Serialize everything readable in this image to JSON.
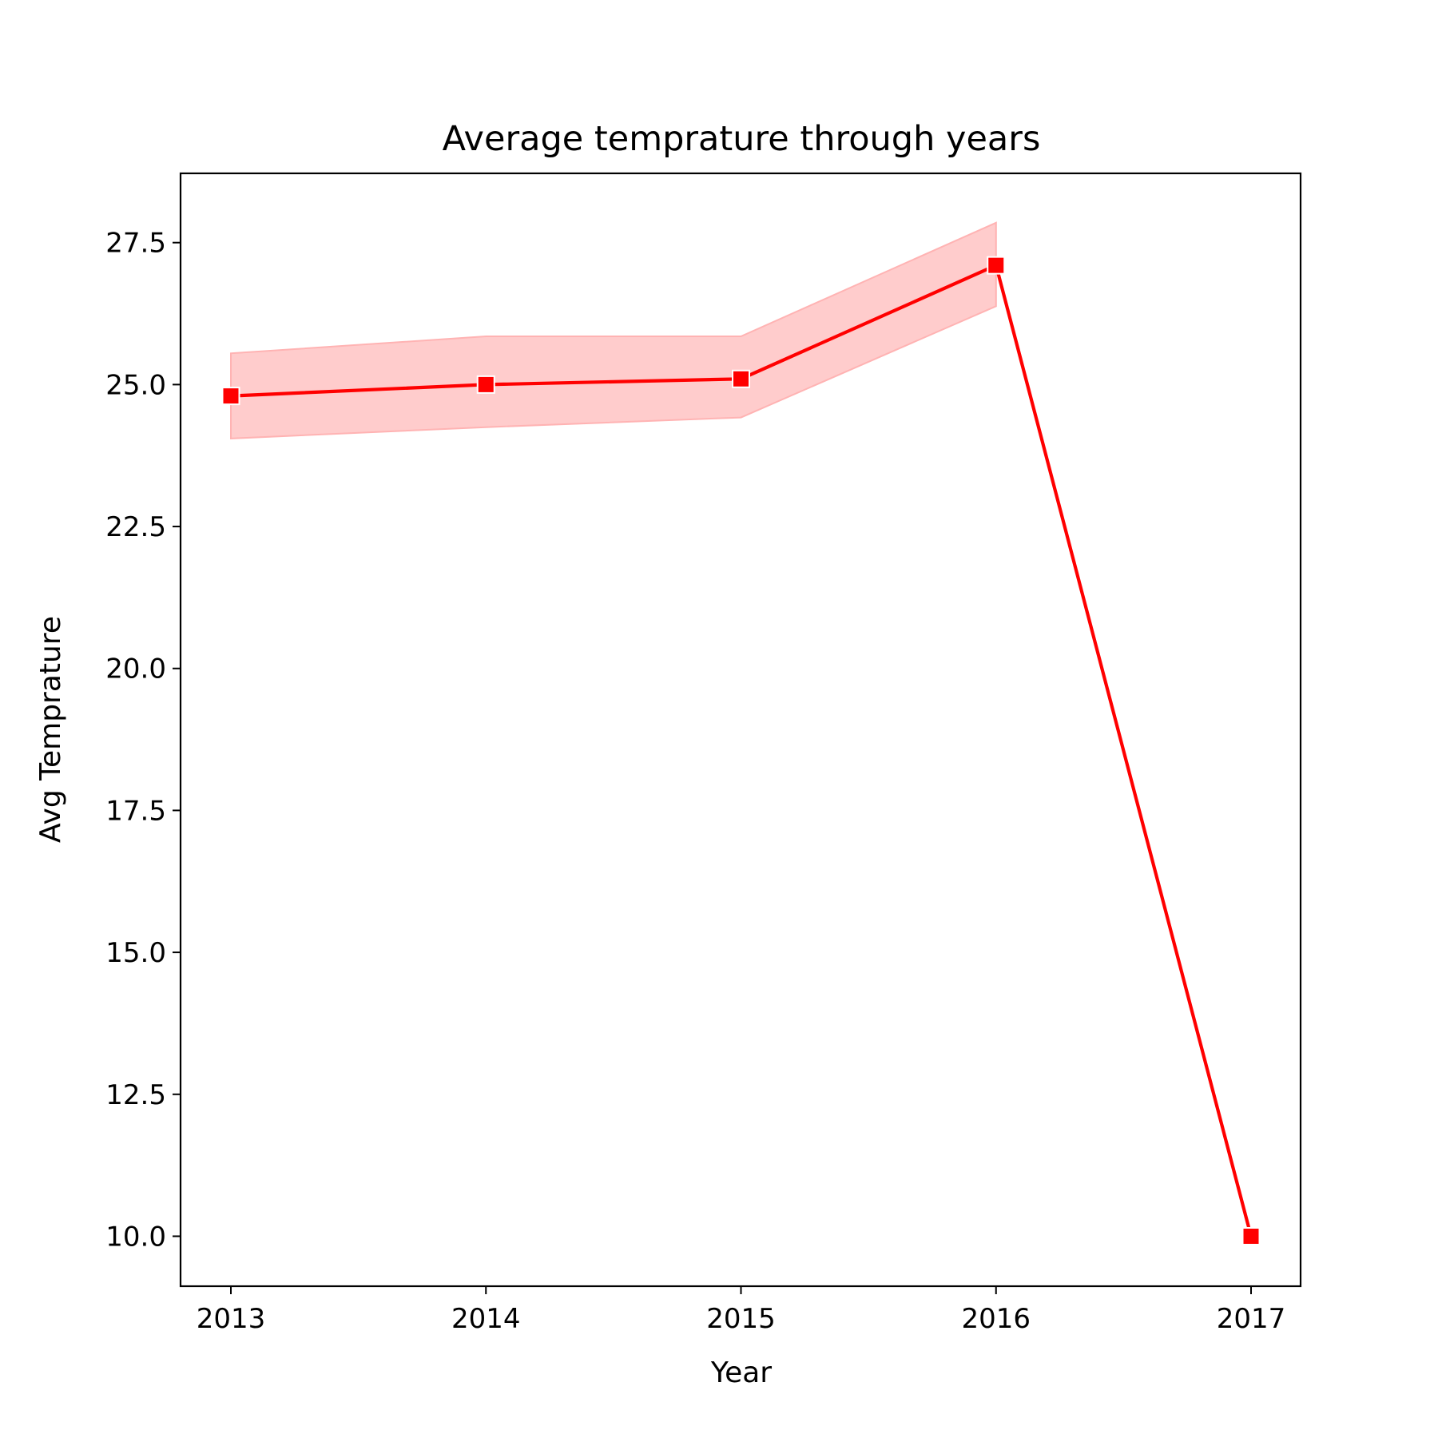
{
  "chart_data": {
    "type": "line",
    "title": "Average temprature through years",
    "xlabel": "Year",
    "ylabel": "Avg Temprature",
    "x": [
      "2013",
      "2014",
      "2015",
      "2016",
      "2017"
    ],
    "series": [
      {
        "values": [
          24.8,
          25.0,
          25.1,
          27.1,
          10.0
        ],
        "ci_lower": [
          24.05,
          24.25,
          24.42,
          26.38,
          null
        ],
        "ci_upper": [
          25.55,
          25.85,
          25.85,
          27.85,
          null
        ],
        "color": "#ff0000",
        "band_color": "#ffcccc",
        "marker": "square"
      }
    ],
    "y_ticks": [
      "10.0",
      "12.5",
      "15.0",
      "17.5",
      "20.0",
      "22.5",
      "25.0",
      "27.5"
    ],
    "ylim": [
      9.12,
      28.72
    ],
    "grid": false,
    "legend": "none"
  }
}
